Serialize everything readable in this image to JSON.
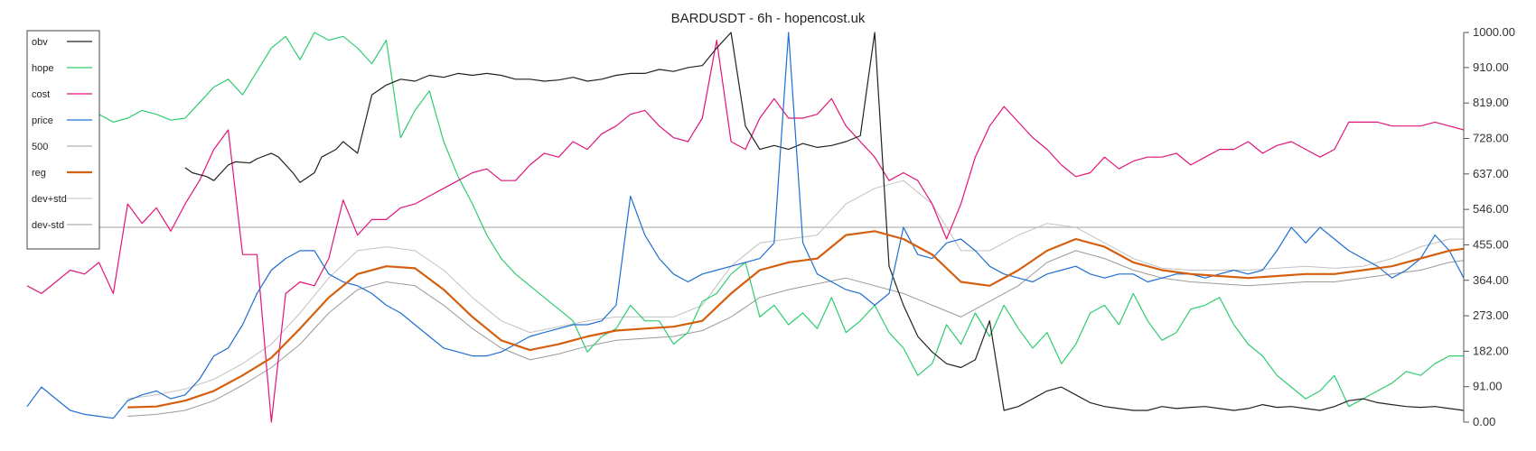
{
  "chart_data": {
    "type": "line",
    "title": "BARDUSDT - 6h - hopencost.uk",
    "xlabel": "",
    "ylabel": "",
    "ylim": [
      0,
      1000
    ],
    "y_ticks": [
      "1000.00",
      "910.00",
      "819.00",
      "728.00",
      "637.00",
      "546.00",
      "455.00",
      "364.00",
      "273.00",
      "182.00",
      "91.00",
      "0.00"
    ],
    "y_tick_values": [
      1000,
      910,
      819,
      728,
      637,
      546,
      455,
      364,
      273,
      182,
      91,
      0
    ],
    "grid": false,
    "legend_position": "top-left",
    "hline": 500,
    "x": [
      0,
      4,
      8,
      12,
      16,
      20,
      24,
      28,
      32,
      36,
      40,
      44,
      48,
      52,
      56,
      60,
      64,
      68,
      72,
      76,
      80,
      84,
      88,
      92,
      96,
      100,
      104,
      108,
      112,
      116,
      120,
      124,
      128,
      132,
      136,
      140,
      144,
      148,
      152,
      156,
      160,
      164,
      168,
      172,
      176,
      180,
      184,
      188,
      192,
      196,
      200
    ],
    "series": [
      {
        "name": "obv",
        "color": "#222222",
        "width": 1.2,
        "x": [
          22,
          23,
          25,
          26,
          27,
          28,
          29,
          31,
          32,
          34,
          35,
          37,
          38,
          40,
          41,
          43,
          44,
          46,
          48,
          50,
          52,
          54,
          56,
          58,
          60,
          62,
          64,
          66,
          68,
          70,
          72,
          74,
          76,
          78,
          80,
          82,
          84,
          86,
          88,
          90,
          92,
          94,
          96,
          98,
          100,
          102,
          104,
          106,
          108,
          110,
          112,
          114,
          116,
          118,
          120,
          122,
          124,
          126,
          128,
          130,
          132,
          134,
          136,
          138,
          140,
          142,
          144,
          146,
          148,
          150,
          152,
          154,
          156,
          158,
          160,
          162,
          164,
          166,
          168,
          170,
          172,
          174,
          176,
          178,
          180,
          182,
          184,
          186,
          188,
          190,
          192,
          194,
          196,
          198,
          200
        ],
        "values": [
          653,
          640,
          630,
          620,
          640,
          660,
          668,
          665,
          676,
          690,
          680,
          640,
          615,
          640,
          680,
          700,
          720,
          690,
          840,
          865,
          880,
          875,
          890,
          885,
          895,
          890,
          895,
          890,
          880,
          880,
          875,
          878,
          885,
          875,
          880,
          890,
          895,
          895,
          905,
          900,
          910,
          915,
          960,
          1000,
          760,
          700,
          710,
          700,
          715,
          705,
          710,
          720,
          735,
          1000,
          400,
          300,
          220,
          180,
          150,
          140,
          160,
          260,
          30,
          40,
          60,
          80,
          90,
          70,
          50,
          40,
          35,
          30,
          30,
          40,
          35,
          38,
          40,
          35,
          30,
          35,
          45,
          38,
          40,
          35,
          30,
          40,
          55,
          60,
          50,
          45,
          40,
          38,
          40,
          35,
          30
        ]
      },
      {
        "name": "hope",
        "color": "#2ecc71",
        "width": 1.2,
        "x": [
          0,
          2,
          4,
          6,
          8,
          10,
          12,
          14,
          16,
          18,
          20,
          22,
          24,
          26,
          28,
          30,
          32,
          34,
          36,
          38,
          40,
          42,
          44,
          46,
          48,
          50,
          52,
          54,
          56,
          58,
          60,
          62,
          64,
          66,
          68,
          70,
          72,
          74,
          76,
          78,
          80,
          82,
          84,
          86,
          88,
          90,
          92,
          94,
          96,
          98,
          100,
          102,
          104,
          106,
          108,
          110,
          112,
          114,
          116,
          118,
          120,
          122,
          124,
          126,
          128,
          130,
          132,
          134,
          136,
          138,
          140,
          142,
          144,
          146,
          148,
          150,
          152,
          154,
          156,
          158,
          160,
          162,
          164,
          166,
          168,
          170,
          172,
          174,
          176,
          178,
          180,
          182,
          184,
          186,
          188,
          190,
          192,
          194,
          196,
          198,
          200
        ],
        "values": [
          770,
          760,
          745,
          760,
          780,
          790,
          770,
          780,
          800,
          790,
          775,
          780,
          820,
          860,
          880,
          840,
          900,
          960,
          990,
          930,
          1000,
          980,
          990,
          960,
          920,
          980,
          730,
          800,
          850,
          720,
          630,
          560,
          480,
          420,
          380,
          350,
          320,
          290,
          260,
          180,
          220,
          240,
          300,
          260,
          260,
          200,
          230,
          310,
          330,
          380,
          410,
          270,
          300,
          250,
          280,
          240,
          320,
          230,
          260,
          300,
          230,
          190,
          120,
          150,
          250,
          200,
          280,
          220,
          300,
          240,
          190,
          230,
          150,
          200,
          280,
          300,
          250,
          330,
          260,
          210,
          230,
          290,
          300,
          320,
          250,
          200,
          170,
          120,
          90,
          60,
          80,
          120,
          40,
          60,
          80,
          100,
          130,
          120,
          150,
          170,
          170
        ]
      },
      {
        "name": "cost",
        "color": "#e0157a",
        "width": 1.2,
        "x": [
          0,
          2,
          4,
          6,
          8,
          10,
          12,
          14,
          16,
          18,
          20,
          22,
          24,
          26,
          28,
          30,
          32,
          34,
          36,
          38,
          40,
          42,
          44,
          46,
          48,
          50,
          52,
          54,
          56,
          58,
          60,
          62,
          64,
          66,
          68,
          70,
          72,
          74,
          76,
          78,
          80,
          82,
          84,
          86,
          88,
          90,
          92,
          94,
          96,
          98,
          100,
          102,
          104,
          106,
          108,
          110,
          112,
          114,
          116,
          118,
          120,
          122,
          124,
          126,
          128,
          130,
          132,
          134,
          136,
          138,
          140,
          142,
          144,
          146,
          148,
          150,
          152,
          154,
          156,
          158,
          160,
          162,
          164,
          166,
          168,
          170,
          172,
          174,
          176,
          178,
          180,
          182,
          184,
          186,
          188,
          190,
          192,
          194,
          196,
          198,
          200
        ],
        "values": [
          350,
          330,
          360,
          390,
          380,
          410,
          330,
          560,
          510,
          550,
          490,
          560,
          620,
          700,
          750,
          430,
          430,
          0,
          330,
          360,
          350,
          420,
          570,
          480,
          520,
          520,
          550,
          560,
          580,
          600,
          620,
          640,
          650,
          620,
          620,
          660,
          690,
          680,
          720,
          700,
          740,
          760,
          790,
          800,
          760,
          730,
          720,
          780,
          980,
          720,
          700,
          780,
          830,
          780,
          780,
          790,
          830,
          760,
          720,
          680,
          620,
          640,
          620,
          560,
          470,
          560,
          680,
          760,
          810,
          770,
          730,
          700,
          660,
          630,
          640,
          680,
          650,
          670,
          680,
          680,
          690,
          660,
          680,
          700,
          700,
          720,
          690,
          710,
          720,
          700,
          680,
          700,
          770,
          770,
          770,
          760,
          760,
          760,
          770,
          760,
          750
        ]
      },
      {
        "name": "price",
        "color": "#1f6fd1",
        "width": 1.2,
        "x": [
          0,
          2,
          4,
          6,
          8,
          10,
          12,
          14,
          16,
          18,
          20,
          22,
          24,
          26,
          28,
          30,
          32,
          34,
          36,
          38,
          40,
          42,
          44,
          46,
          48,
          50,
          52,
          54,
          56,
          58,
          60,
          62,
          64,
          66,
          68,
          70,
          72,
          74,
          76,
          78,
          80,
          82,
          84,
          86,
          88,
          90,
          92,
          94,
          96,
          98,
          100,
          102,
          104,
          106,
          108,
          110,
          112,
          114,
          116,
          118,
          120,
          122,
          124,
          126,
          128,
          130,
          132,
          134,
          136,
          138,
          140,
          142,
          144,
          146,
          148,
          150,
          152,
          154,
          156,
          158,
          160,
          162,
          164,
          166,
          168,
          170,
          172,
          174,
          176,
          178,
          180,
          182,
          184,
          186,
          188,
          190,
          192,
          194,
          196,
          198,
          200
        ],
        "values": [
          40,
          90,
          60,
          30,
          20,
          15,
          10,
          55,
          70,
          80,
          60,
          70,
          110,
          170,
          190,
          250,
          330,
          390,
          420,
          440,
          440,
          380,
          360,
          350,
          330,
          300,
          280,
          250,
          220,
          190,
          180,
          170,
          170,
          180,
          200,
          220,
          230,
          240,
          250,
          250,
          260,
          300,
          580,
          480,
          420,
          380,
          360,
          380,
          390,
          400,
          410,
          420,
          460,
          1000,
          460,
          380,
          360,
          340,
          330,
          300,
          330,
          500,
          430,
          420,
          460,
          470,
          440,
          400,
          380,
          370,
          360,
          380,
          390,
          400,
          380,
          370,
          380,
          380,
          360,
          370,
          380,
          380,
          370,
          380,
          390,
          380,
          390,
          440,
          500,
          460,
          500,
          470,
          440,
          420,
          400,
          370,
          390,
          420,
          480,
          440,
          370
        ]
      },
      {
        "name": "500",
        "color": "#b5b5b5",
        "width": 1.2,
        "dashed": false
      },
      {
        "name": "reg",
        "color": "#d35f0f",
        "width": 2.2,
        "x": [
          14,
          18,
          22,
          26,
          30,
          34,
          38,
          42,
          46,
          50,
          54,
          58,
          62,
          66,
          70,
          74,
          78,
          82,
          86,
          90,
          94,
          98,
          102,
          106,
          110,
          114,
          118,
          122,
          126,
          130,
          134,
          138,
          142,
          146,
          150,
          154,
          158,
          162,
          166,
          170,
          174,
          178,
          182,
          186,
          190,
          194,
          198,
          200
        ],
        "values": [
          38,
          40,
          55,
          80,
          120,
          165,
          240,
          320,
          380,
          400,
          395,
          340,
          270,
          210,
          185,
          200,
          220,
          235,
          240,
          245,
          260,
          330,
          390,
          410,
          420,
          480,
          490,
          470,
          430,
          360,
          350,
          390,
          440,
          470,
          450,
          410,
          390,
          380,
          375,
          370,
          375,
          380,
          380,
          390,
          400,
          420,
          440,
          445
        ]
      },
      {
        "name": "dev+std",
        "color": "#c2c2c2",
        "width": 1.0,
        "x": [
          14,
          18,
          22,
          26,
          30,
          34,
          38,
          42,
          46,
          50,
          54,
          58,
          62,
          66,
          70,
          74,
          78,
          82,
          86,
          90,
          94,
          98,
          102,
          106,
          110,
          114,
          118,
          122,
          126,
          130,
          134,
          138,
          142,
          146,
          150,
          154,
          158,
          162,
          166,
          170,
          174,
          178,
          182,
          186,
          190,
          194,
          198,
          200
        ],
        "values": [
          60,
          70,
          85,
          110,
          150,
          200,
          280,
          370,
          440,
          450,
          440,
          390,
          320,
          260,
          230,
          245,
          260,
          270,
          270,
          270,
          300,
          400,
          460,
          470,
          480,
          560,
          600,
          620,
          560,
          440,
          440,
          480,
          510,
          500,
          460,
          420,
          395,
          390,
          390,
          390,
          395,
          400,
          395,
          400,
          420,
          450,
          470,
          470
        ]
      },
      {
        "name": "dev-std",
        "color": "#9a9a9a",
        "width": 1.0,
        "x": [
          14,
          18,
          22,
          26,
          30,
          34,
          38,
          42,
          46,
          50,
          54,
          58,
          62,
          66,
          70,
          74,
          78,
          82,
          86,
          90,
          94,
          98,
          102,
          106,
          110,
          114,
          118,
          122,
          126,
          130,
          134,
          138,
          142,
          146,
          150,
          154,
          158,
          162,
          166,
          170,
          174,
          178,
          182,
          186,
          190,
          194,
          198,
          200
        ],
        "values": [
          15,
          20,
          30,
          55,
          95,
          140,
          200,
          280,
          340,
          360,
          350,
          300,
          240,
          190,
          160,
          175,
          195,
          210,
          215,
          220,
          235,
          270,
          320,
          340,
          355,
          370,
          350,
          330,
          300,
          270,
          310,
          350,
          410,
          440,
          420,
          390,
          370,
          360,
          355,
          350,
          355,
          360,
          360,
          370,
          380,
          390,
          410,
          415
        ]
      }
    ],
    "legend": [
      "obv",
      "hope",
      "cost",
      "price",
      "500",
      "reg",
      "dev+std",
      "dev-std"
    ]
  }
}
